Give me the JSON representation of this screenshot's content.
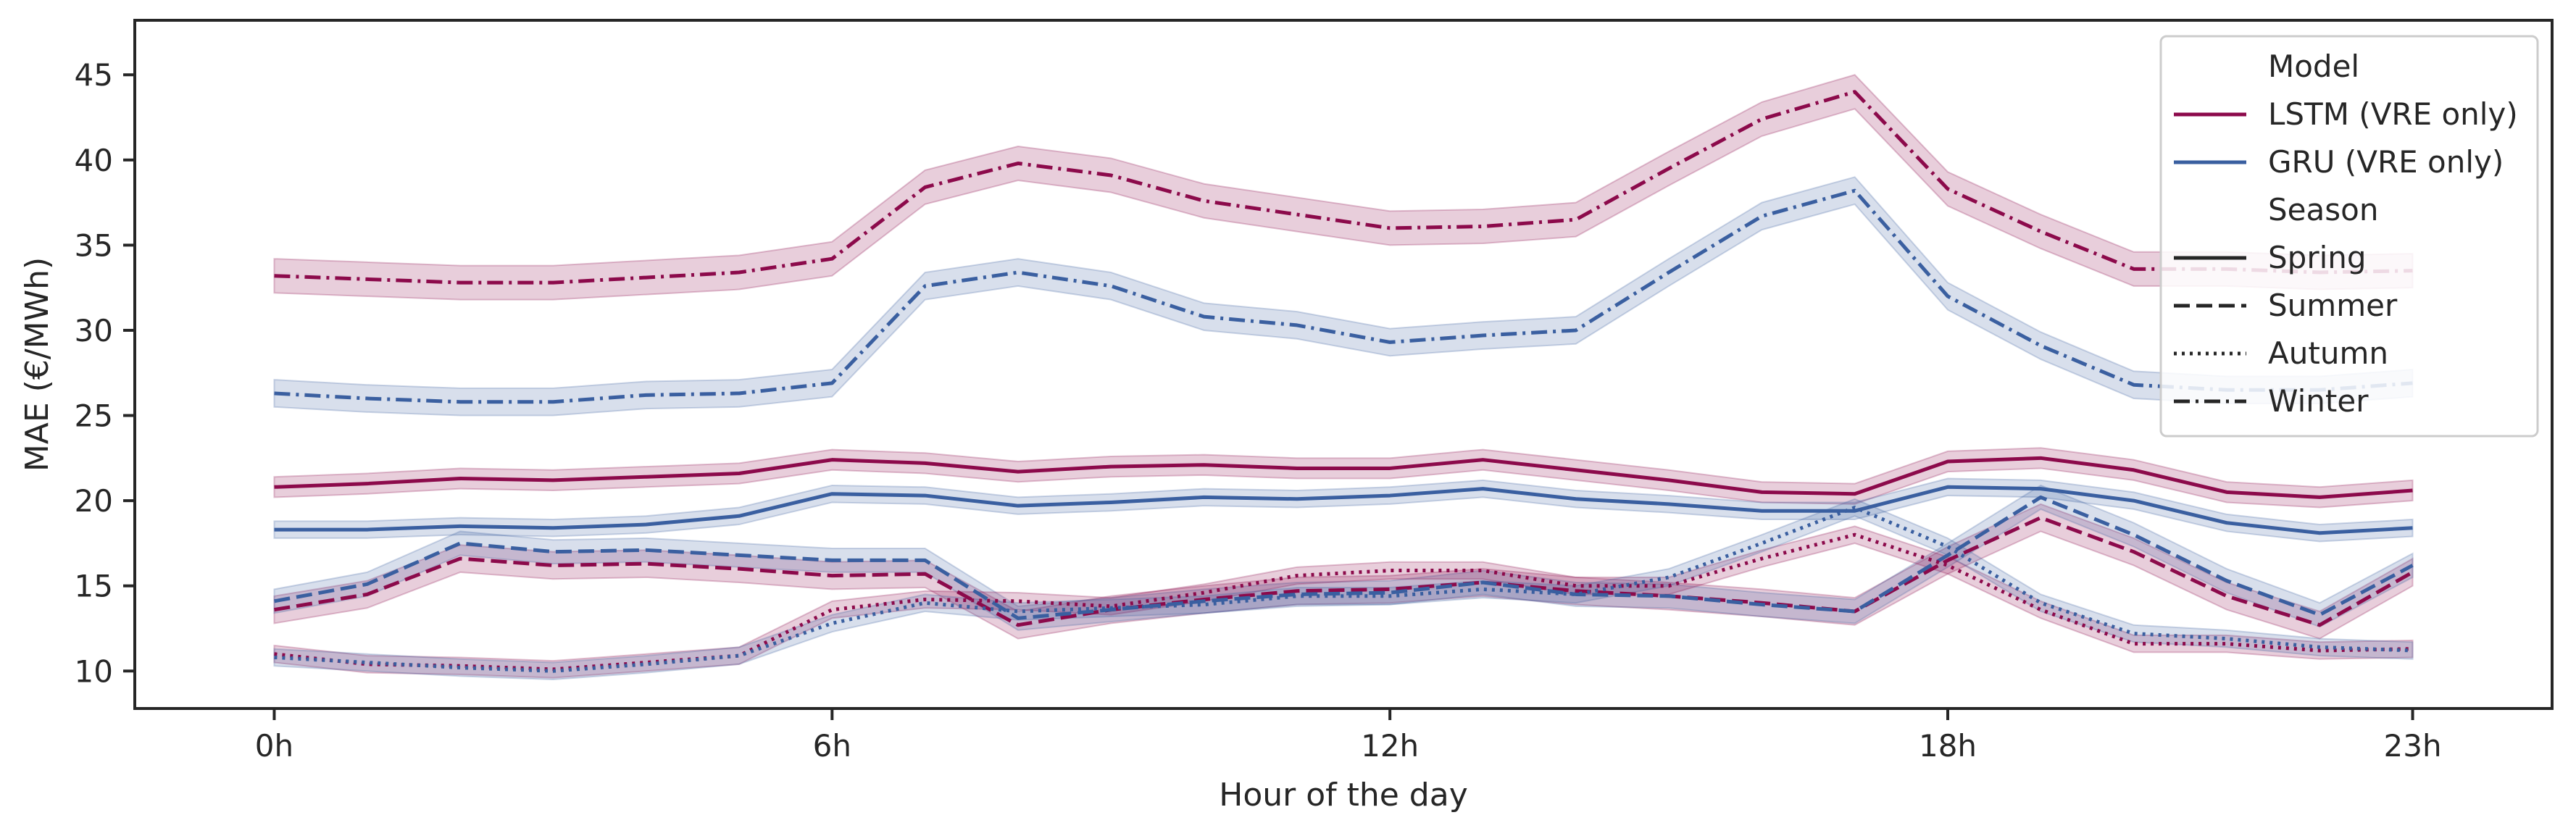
{
  "chart_data": {
    "type": "line",
    "xlabel": "Hour of the day",
    "ylabel": "MAE (€/MWh)",
    "xlim": [
      -1.5,
      24.5
    ],
    "ylim": [
      7.8,
      48.2
    ],
    "x_ticks": [
      0,
      6,
      12,
      18,
      23
    ],
    "x_tick_labels": [
      "0h",
      "6h",
      "12h",
      "18h",
      "23h"
    ],
    "y_ticks": [
      10,
      15,
      20,
      25,
      30,
      35,
      40,
      45
    ],
    "y_tick_labels": [
      "10",
      "15",
      "20",
      "25",
      "30",
      "35",
      "40",
      "45"
    ],
    "grid": false,
    "legend_position": "top-right",
    "legend": [
      {
        "kind": "header",
        "label": "Model"
      },
      {
        "kind": "model",
        "label": "LSTM (VRE only)",
        "color": "#8c0a4b"
      },
      {
        "kind": "model",
        "label": "GRU (VRE only)",
        "color": "#3a5fa0"
      },
      {
        "kind": "header",
        "label": "Season"
      },
      {
        "kind": "season",
        "label": "Spring",
        "dash": "solid"
      },
      {
        "kind": "season",
        "label": "Summer",
        "dash": "dashed"
      },
      {
        "kind": "season",
        "label": "Autumn",
        "dash": "dotted"
      },
      {
        "kind": "season",
        "label": "Winter",
        "dash": "dashdot"
      }
    ],
    "x": [
      0,
      1,
      2,
      3,
      4,
      5,
      6,
      7,
      8,
      9,
      10,
      11,
      12,
      13,
      14,
      15,
      16,
      17,
      18,
      19,
      20,
      21,
      22,
      23
    ],
    "series": [
      {
        "model": "LSTM (VRE only)",
        "season": "Spring",
        "color": "#8c0a4b",
        "dash": "solid",
        "band": 0.6,
        "values": [
          20.8,
          21.0,
          21.3,
          21.2,
          21.4,
          21.6,
          22.4,
          22.2,
          21.7,
          22.0,
          22.1,
          21.9,
          21.9,
          22.4,
          21.8,
          21.2,
          20.5,
          20.4,
          22.3,
          22.5,
          21.8,
          20.5,
          20.2,
          20.6
        ]
      },
      {
        "model": "GRU (VRE only)",
        "season": "Spring",
        "color": "#3a5fa0",
        "dash": "solid",
        "band": 0.5,
        "values": [
          18.3,
          18.3,
          18.5,
          18.4,
          18.6,
          19.1,
          20.4,
          20.3,
          19.7,
          19.9,
          20.2,
          20.1,
          20.3,
          20.7,
          20.1,
          19.8,
          19.4,
          19.4,
          20.8,
          20.7,
          20.0,
          18.7,
          18.1,
          18.4
        ]
      },
      {
        "model": "LSTM (VRE only)",
        "season": "Summer",
        "color": "#8c0a4b",
        "dash": "dashed",
        "band": 0.8,
        "values": [
          13.6,
          14.5,
          16.6,
          16.2,
          16.3,
          16.0,
          15.6,
          15.7,
          12.7,
          13.6,
          14.2,
          14.7,
          14.8,
          15.2,
          14.7,
          14.4,
          14.0,
          13.5,
          16.5,
          19.0,
          17.0,
          14.4,
          12.7,
          15.8
        ]
      },
      {
        "model": "GRU (VRE only)",
        "season": "Summer",
        "color": "#3a5fa0",
        "dash": "dashed",
        "band": 0.7,
        "values": [
          14.1,
          15.1,
          17.5,
          17.0,
          17.1,
          16.8,
          16.5,
          16.5,
          13.1,
          13.6,
          14.1,
          14.5,
          14.6,
          15.2,
          14.5,
          14.4,
          13.9,
          13.5,
          16.8,
          20.2,
          18.0,
          15.3,
          13.3,
          16.2
        ]
      },
      {
        "model": "LSTM (VRE only)",
        "season": "Autumn",
        "color": "#8c0a4b",
        "dash": "dotted",
        "band": 0.5,
        "values": [
          11.0,
          10.4,
          10.3,
          10.1,
          10.5,
          10.9,
          13.6,
          14.2,
          14.1,
          13.8,
          14.6,
          15.6,
          15.9,
          15.9,
          15.0,
          15.0,
          16.6,
          18.0,
          16.2,
          13.6,
          11.6,
          11.6,
          11.2,
          11.3
        ]
      },
      {
        "model": "GRU (VRE only)",
        "season": "Autumn",
        "color": "#3a5fa0",
        "dash": "dotted",
        "band": 0.5,
        "values": [
          10.8,
          10.5,
          10.2,
          10.0,
          10.4,
          10.9,
          12.8,
          14.0,
          13.5,
          13.7,
          13.9,
          14.4,
          14.4,
          14.8,
          14.5,
          15.5,
          17.5,
          19.6,
          17.3,
          14.0,
          12.2,
          11.9,
          11.4,
          11.2
        ]
      },
      {
        "model": "LSTM (VRE only)",
        "season": "Winter",
        "color": "#8c0a4b",
        "dash": "dashdot",
        "band": 1.0,
        "values": [
          33.2,
          33.0,
          32.8,
          32.8,
          33.1,
          33.4,
          34.2,
          38.4,
          39.8,
          39.1,
          37.6,
          36.8,
          36.0,
          36.1,
          36.5,
          39.5,
          42.4,
          44.0,
          38.3,
          35.8,
          33.6,
          33.6,
          33.4,
          33.5
        ]
      },
      {
        "model": "GRU (VRE only)",
        "season": "Winter",
        "color": "#3a5fa0",
        "dash": "dashdot",
        "band": 0.8,
        "values": [
          26.3,
          26.0,
          25.8,
          25.8,
          26.2,
          26.3,
          26.9,
          32.6,
          33.4,
          32.6,
          30.8,
          30.3,
          29.3,
          29.7,
          30.0,
          33.4,
          36.7,
          38.2,
          32.0,
          29.1,
          26.8,
          26.5,
          26.5,
          26.9
        ]
      }
    ]
  }
}
